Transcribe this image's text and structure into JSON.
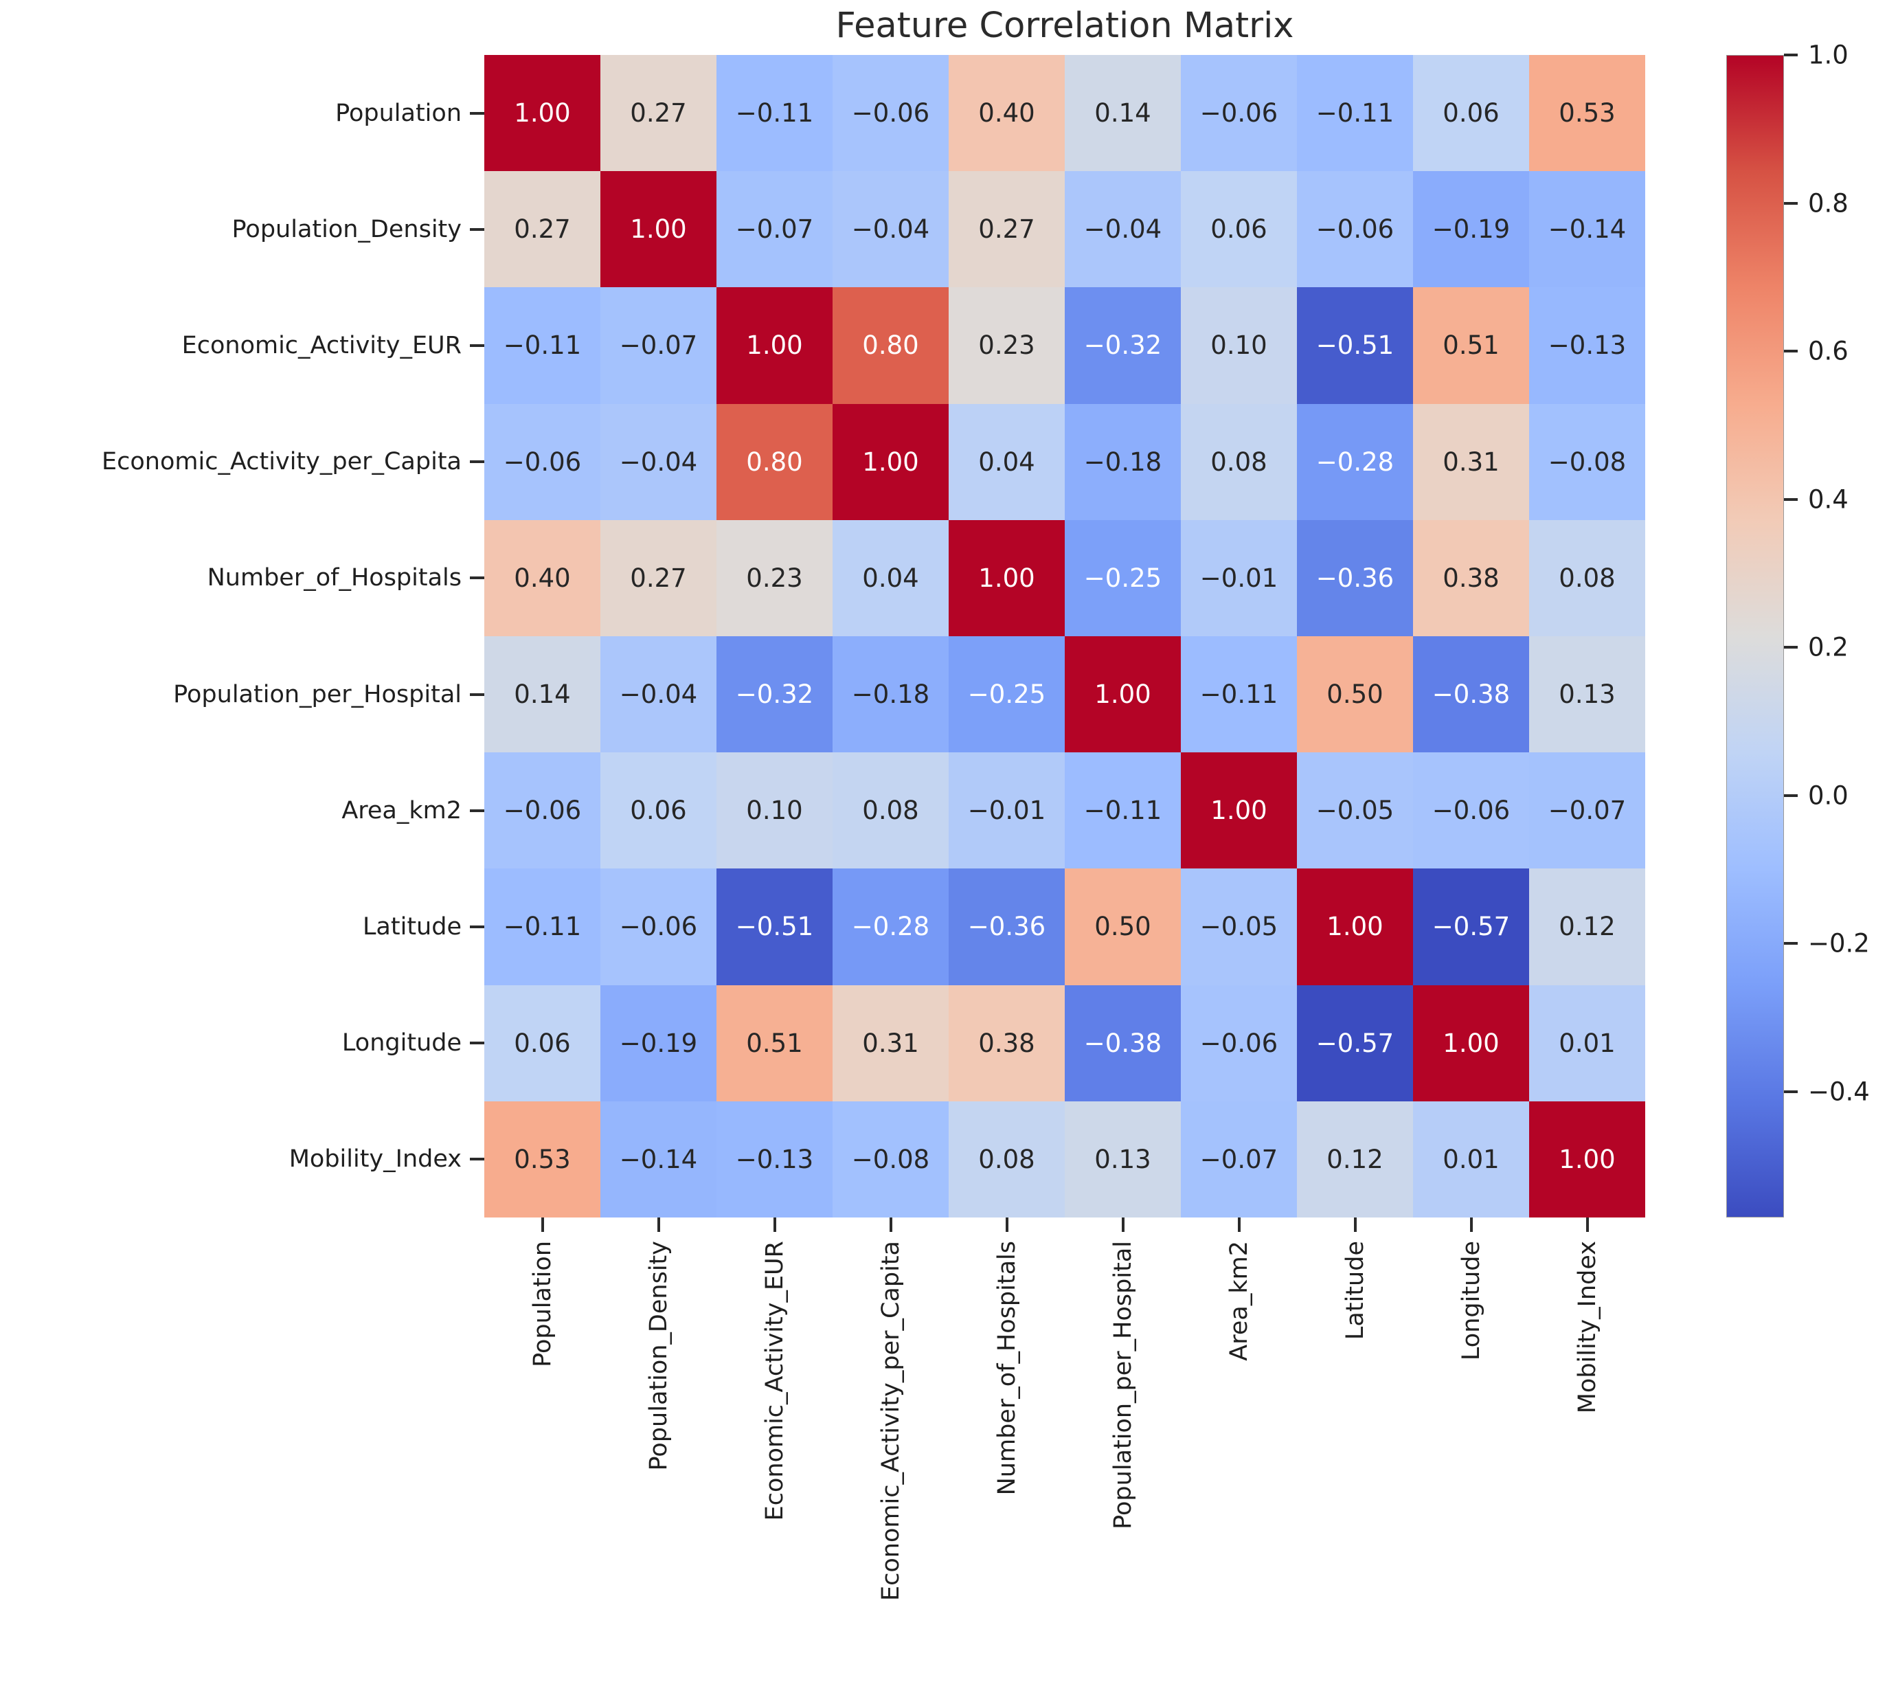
{
  "chart_data": {
    "type": "heatmap",
    "title": "Feature Correlation Matrix",
    "features": [
      "Population",
      "Population_Density",
      "Economic_Activity_EUR",
      "Economic_Activity_per_Capita",
      "Number_of_Hospitals",
      "Population_per_Hospital",
      "Area_km2",
      "Latitude",
      "Longitude",
      "Mobility_Index"
    ],
    "matrix": [
      [
        1.0,
        0.27,
        -0.11,
        -0.06,
        0.4,
        0.14,
        -0.06,
        -0.11,
        0.06,
        0.53
      ],
      [
        0.27,
        1.0,
        -0.07,
        -0.04,
        0.27,
        -0.04,
        0.06,
        -0.06,
        -0.19,
        -0.14
      ],
      [
        -0.11,
        -0.07,
        1.0,
        0.8,
        0.23,
        -0.32,
        0.1,
        -0.51,
        0.51,
        -0.13
      ],
      [
        -0.06,
        -0.04,
        0.8,
        1.0,
        0.04,
        -0.18,
        0.08,
        -0.28,
        0.31,
        -0.08
      ],
      [
        0.4,
        0.27,
        0.23,
        0.04,
        1.0,
        -0.25,
        -0.01,
        -0.36,
        0.38,
        0.08
      ],
      [
        0.14,
        -0.04,
        -0.32,
        -0.18,
        -0.25,
        1.0,
        -0.11,
        0.5,
        -0.38,
        0.13
      ],
      [
        -0.06,
        0.06,
        0.1,
        0.08,
        -0.01,
        -0.11,
        1.0,
        -0.05,
        -0.06,
        -0.07
      ],
      [
        -0.11,
        -0.06,
        -0.51,
        -0.28,
        -0.36,
        0.5,
        -0.05,
        1.0,
        -0.57,
        0.12
      ],
      [
        0.06,
        -0.19,
        0.51,
        0.31,
        0.38,
        -0.38,
        -0.06,
        -0.57,
        1.0,
        0.01
      ],
      [
        0.53,
        -0.14,
        -0.13,
        -0.08,
        0.08,
        0.13,
        -0.07,
        0.12,
        0.01,
        1.0
      ]
    ],
    "annotation_decimals": 2,
    "colormap": "coolwarm",
    "colormap_stops": [
      "#3b4cc0",
      "#5977e3",
      "#7b9ff9",
      "#9ebeff",
      "#c0d4f5",
      "#dddcdb",
      "#f2cbb7",
      "#f7ac8e",
      "#ee8468",
      "#d65244",
      "#b40426"
    ],
    "vmin": -0.57,
    "vmax": 1.0,
    "colorbar": {
      "position": "right",
      "tick_values": [
        1.0,
        0.8,
        0.6,
        0.4,
        0.2,
        0.0,
        -0.2,
        -0.4
      ],
      "tick_labels": [
        "1.0",
        "0.8",
        "0.6",
        "0.4",
        "0.2",
        "0.0",
        "−0.2",
        "−0.4"
      ]
    },
    "x_tick_rotation": 90,
    "grid": false,
    "text_colors": {
      "light": "#ffffff",
      "dark": "#262626"
    }
  }
}
